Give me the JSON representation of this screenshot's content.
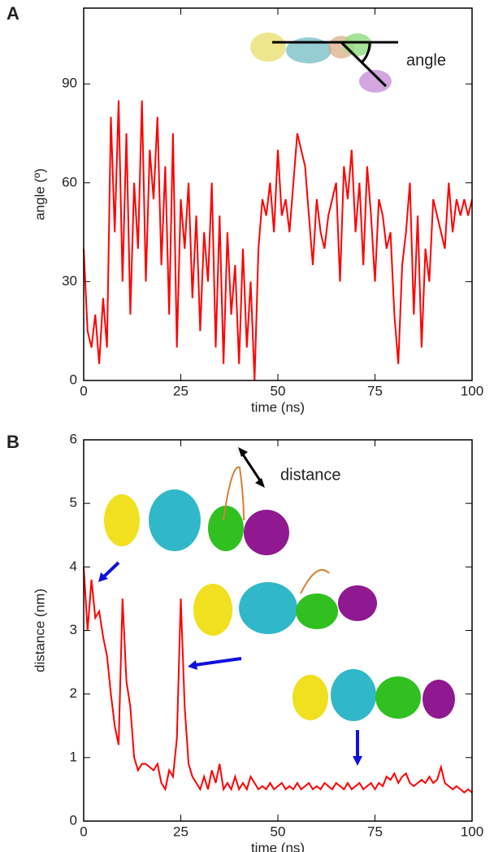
{
  "chart_data": [
    {
      "type": "line",
      "panel_label": "A",
      "xlabel": "time (ns)",
      "ylabel": "angle (º)",
      "annotation": "angle",
      "x": [
        0,
        1,
        2,
        3,
        4,
        5,
        6,
        7,
        8,
        9,
        10,
        11,
        12,
        13,
        14,
        15,
        16,
        17,
        18,
        19,
        20,
        21,
        22,
        23,
        24,
        25,
        26,
        27,
        28,
        29,
        30,
        31,
        32,
        33,
        34,
        35,
        36,
        37,
        38,
        39,
        40,
        41,
        42,
        43,
        44,
        45,
        46,
        47,
        48,
        49,
        50,
        51,
        52,
        53,
        54,
        55,
        56,
        57,
        58,
        59,
        60,
        61,
        62,
        63,
        64,
        65,
        66,
        67,
        68,
        69,
        70,
        71,
        72,
        73,
        74,
        75,
        76,
        77,
        78,
        79,
        80,
        81,
        82,
        83,
        84,
        85,
        86,
        87,
        88,
        89,
        90,
        91,
        92,
        93,
        94,
        95,
        96,
        97,
        98,
        99,
        100
      ],
      "values": [
        40,
        15,
        10,
        20,
        5,
        25,
        10,
        80,
        45,
        85,
        30,
        75,
        20,
        60,
        40,
        85,
        30,
        70,
        55,
        80,
        35,
        65,
        20,
        75,
        10,
        55,
        40,
        60,
        25,
        50,
        15,
        45,
        30,
        60,
        10,
        50,
        5,
        45,
        20,
        35,
        5,
        40,
        10,
        30,
        0,
        40,
        55,
        50,
        60,
        45,
        70,
        50,
        55,
        45,
        60,
        75,
        70,
        65,
        50,
        35,
        55,
        45,
        40,
        50,
        55,
        60,
        30,
        65,
        55,
        70,
        45,
        60,
        35,
        65,
        50,
        30,
        55,
        50,
        40,
        45,
        20,
        5,
        35,
        45,
        60,
        20,
        50,
        10,
        40,
        30,
        55,
        50,
        45,
        40,
        60,
        45,
        55,
        50,
        55,
        50,
        55
      ],
      "color": "#ff0000",
      "xlim": [
        0,
        100
      ],
      "ylim": [
        0,
        113
      ],
      "xticks": [
        0,
        25,
        50,
        75,
        100
      ],
      "yticks": [
        0,
        30,
        60,
        90
      ]
    },
    {
      "type": "line",
      "panel_label": "B",
      "xlabel": "time (ns)",
      "ylabel": "distance (nm)",
      "annotation": "distance",
      "x": [
        0,
        1,
        2,
        3,
        4,
        5,
        6,
        7,
        8,
        9,
        10,
        11,
        12,
        13,
        14,
        15,
        16,
        17,
        18,
        19,
        20,
        21,
        22,
        23,
        24,
        25,
        26,
        27,
        28,
        29,
        30,
        31,
        32,
        33,
        34,
        35,
        36,
        37,
        38,
        39,
        40,
        41,
        42,
        43,
        44,
        45,
        46,
        47,
        48,
        49,
        50,
        51,
        52,
        53,
        54,
        55,
        56,
        57,
        58,
        59,
        60,
        61,
        62,
        63,
        64,
        65,
        66,
        67,
        68,
        69,
        70,
        71,
        72,
        73,
        74,
        75,
        76,
        77,
        78,
        79,
        80,
        81,
        82,
        83,
        84,
        85,
        86,
        87,
        88,
        89,
        90,
        91,
        92,
        93,
        94,
        95,
        96,
        97,
        98,
        99,
        100
      ],
      "values": [
        4.0,
        3.0,
        3.8,
        3.2,
        3.3,
        2.9,
        2.6,
        2.0,
        1.5,
        1.2,
        3.5,
        2.2,
        1.8,
        1.0,
        0.8,
        0.9,
        0.9,
        0.85,
        0.8,
        0.9,
        0.6,
        0.5,
        0.8,
        0.7,
        1.3,
        3.5,
        1.8,
        0.9,
        0.7,
        0.6,
        0.5,
        0.7,
        0.5,
        0.8,
        0.6,
        0.9,
        0.5,
        0.6,
        0.5,
        0.7,
        0.5,
        0.6,
        0.5,
        0.7,
        0.6,
        0.5,
        0.55,
        0.5,
        0.6,
        0.5,
        0.55,
        0.6,
        0.5,
        0.55,
        0.5,
        0.6,
        0.5,
        0.55,
        0.6,
        0.5,
        0.55,
        0.5,
        0.6,
        0.55,
        0.5,
        0.6,
        0.55,
        0.5,
        0.6,
        0.5,
        0.55,
        0.6,
        0.5,
        0.55,
        0.6,
        0.5,
        0.6,
        0.55,
        0.7,
        0.65,
        0.75,
        0.6,
        0.7,
        0.75,
        0.6,
        0.55,
        0.6,
        0.65,
        0.6,
        0.7,
        0.6,
        0.65,
        0.85,
        0.6,
        0.55,
        0.5,
        0.55,
        0.5,
        0.45,
        0.5,
        0.45
      ],
      "color": "#ff0000",
      "xlim": [
        0,
        100
      ],
      "ylim": [
        0,
        6
      ],
      "xticks": [
        0,
        25,
        50,
        75,
        100
      ],
      "yticks": [
        0,
        1,
        2,
        3,
        4,
        5,
        6
      ]
    }
  ]
}
